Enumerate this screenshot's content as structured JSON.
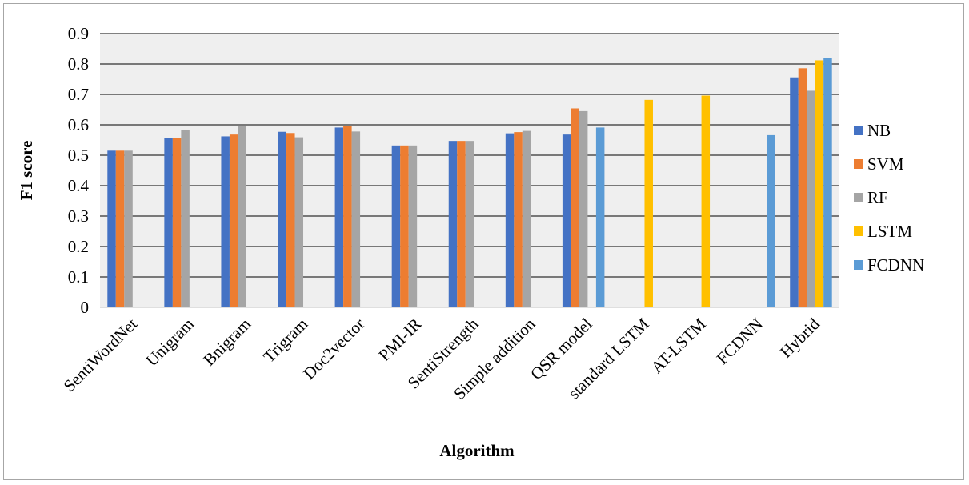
{
  "chart_data": {
    "type": "bar",
    "title": "",
    "xlabel": "Algorithm",
    "ylabel": "F1 score",
    "ylim": [
      0,
      0.9
    ],
    "yticks": [
      "0",
      "0.1",
      "0.2",
      "0.3",
      "0.4",
      "0.5",
      "0.6",
      "0.7",
      "0.8",
      "0.9"
    ],
    "grid": true,
    "legend_position": "right",
    "categories": [
      "SentiWordNet",
      "Unigram",
      "Bnigram",
      "Trigram",
      "Doc2vector",
      "PMI-IR",
      "SentiStrength",
      "Simple addition",
      "QSR model",
      "standard LSTM",
      "AT-LSTM",
      "FCDNN",
      "Hybrid"
    ],
    "series": [
      {
        "name": "NB",
        "color": "#4472c4",
        "values": [
          0.515,
          0.557,
          0.562,
          0.577,
          0.591,
          0.532,
          0.547,
          0.572,
          0.568,
          null,
          null,
          null,
          0.756
        ]
      },
      {
        "name": "SVM",
        "color": "#ed7d31",
        "values": [
          0.515,
          0.557,
          0.568,
          0.573,
          0.595,
          0.532,
          0.547,
          0.576,
          0.654,
          null,
          null,
          null,
          0.786
        ]
      },
      {
        "name": "RF",
        "color": "#a5a5a5",
        "values": [
          0.515,
          0.584,
          0.595,
          0.559,
          0.578,
          0.532,
          0.547,
          0.58,
          0.645,
          null,
          null,
          null,
          0.712
        ]
      },
      {
        "name": "LSTM",
        "color": "#ffc000",
        "values": [
          null,
          null,
          null,
          null,
          null,
          null,
          null,
          null,
          null,
          0.682,
          0.696,
          null,
          0.812
        ]
      },
      {
        "name": "FCDNN",
        "color": "#5b9bd5",
        "values": [
          null,
          null,
          null,
          null,
          null,
          null,
          null,
          null,
          0.591,
          null,
          null,
          0.566,
          0.821
        ]
      }
    ]
  }
}
